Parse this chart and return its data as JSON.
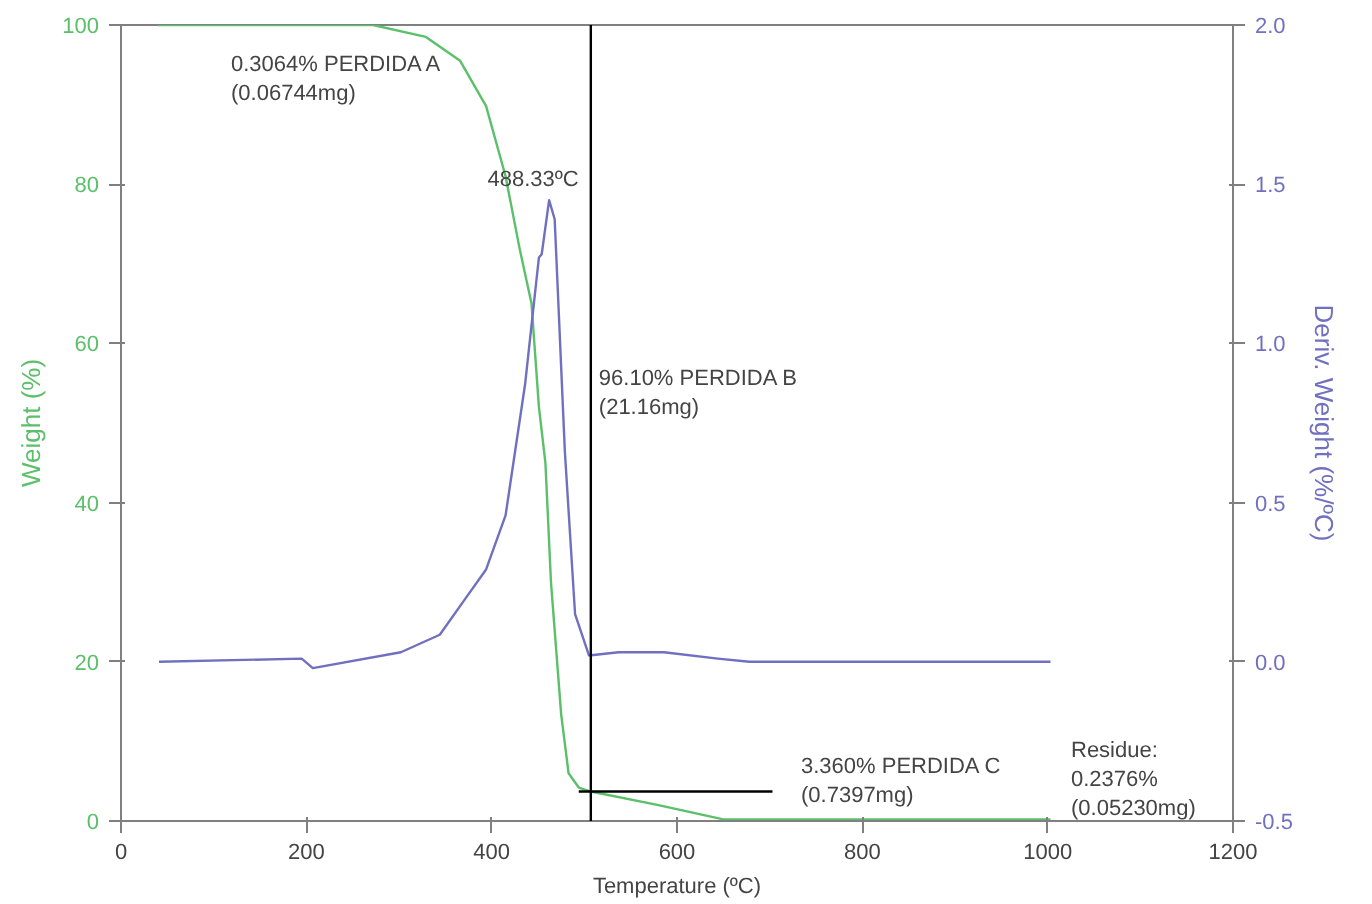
{
  "chart_data": {
    "type": "line",
    "xlabel": "Temperature (ºC)",
    "ylabel": "Weight (%)",
    "y2label": "Deriv. Weight (%/ºC)",
    "xlim": [
      0,
      1200
    ],
    "xticks": [
      0,
      200,
      400,
      600,
      800,
      1000,
      1200
    ],
    "ylim": [
      0,
      100
    ],
    "yticks": [
      0,
      20,
      40,
      60,
      80,
      100
    ],
    "y2lim": [
      -0.5,
      2.0
    ],
    "y2ticks": [
      {
        "value": -0.5,
        "label": "-0.5"
      },
      {
        "value": 0,
        "label": "0.0"
      },
      {
        "value": 0.5,
        "label": "0.5"
      },
      {
        "value": 1,
        "label": "1.0"
      },
      {
        "value": 1.5,
        "label": "1.5"
      },
      {
        "value": 2,
        "label": "2.0"
      }
    ],
    "grid": false,
    "series": [
      {
        "color": "#5cbf6a",
        "axis": "y",
        "x": [
          40,
          272,
          329,
          366,
          394,
          415,
          430,
          443,
          451,
          458,
          464,
          475,
          483,
          494,
          507,
          580,
          650,
          1003
        ],
        "values": [
          100,
          100,
          98.5,
          95.5,
          89.8,
          81,
          72,
          65,
          52,
          45,
          30,
          13.4,
          6,
          4.2,
          3.7,
          2,
          0.2,
          0.2
        ]
      },
      {
        "color": "#7070c0",
        "axis": "y2",
        "x": [
          41,
          195,
          207,
          302,
          344,
          372,
          394,
          415,
          436,
          451,
          454,
          462,
          468,
          479,
          490,
          505,
          537,
          586,
          644,
          678,
          1003
        ],
        "values": [
          0.0,
          0.01,
          -0.02,
          0.03,
          0.085,
          0.2,
          0.29,
          0.46,
          0.87,
          1.27,
          1.28,
          1.45,
          1.39,
          0.66,
          0.15,
          0.02,
          0.03,
          0.03,
          0.01,
          0.0,
          0.0
        ]
      },
      {
        "color": "#000000",
        "axis": "y",
        "type": "line",
        "x": [
          494,
          703
        ],
        "values": [
          3.7,
          3.7
        ]
      }
    ],
    "ref_lines": [
      {
        "axis": "x",
        "value": 507,
        "color": "#000000"
      }
    ],
    "annotations": [
      "0.3064% PERDIDA A\n(0.06744mg)",
      {
        "text": "488.33ºC",
        "x": 462,
        "y": 79
      },
      {
        "text": "96.10% PERDIDA B\n(21.16mg)",
        "x": 507,
        "y": 57
      },
      "3.360% PERDIDA C\n(0.7397mg)",
      "Residue:\n0.2376%\n(0.05230mg)"
    ]
  }
}
